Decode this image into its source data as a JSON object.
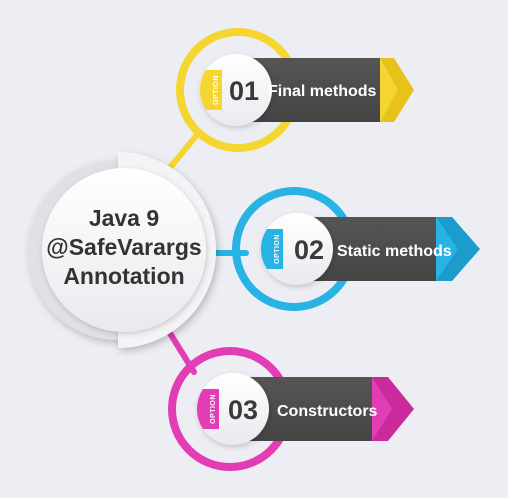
{
  "center": {
    "lines": [
      "Java 9",
      "@SafeVarargs",
      "Annotation"
    ]
  },
  "options": [
    {
      "tag": "OPTION",
      "number": "01",
      "label": "Final methods",
      "color": "#f5d631",
      "color_dark": "#e8c21a"
    },
    {
      "tag": "OPTION",
      "number": "02",
      "label": "Static methods",
      "color": "#27b3e3",
      "color_dark": "#1b9ccc"
    },
    {
      "tag": "OPTION",
      "number": "03",
      "label": "Constructors",
      "color": "#e23db4",
      "color_dark": "#c92a9c"
    }
  ],
  "colors": {
    "background": "#eceef3",
    "banner": "#4d4d4d",
    "text_dark": "#333333"
  }
}
